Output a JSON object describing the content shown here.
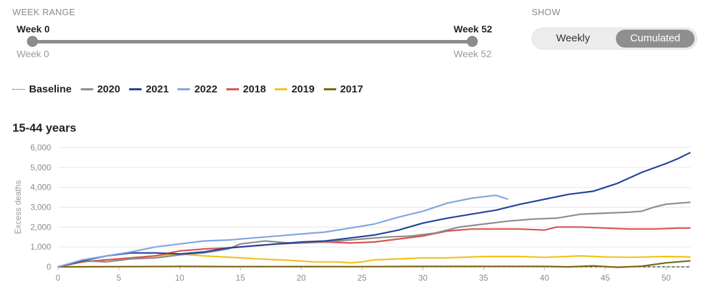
{
  "week_range": {
    "label": "WEEK RANGE",
    "start_top": "Week 0",
    "end_top": "Week 52",
    "start_bottom": "Week 0",
    "end_bottom": "Week 52"
  },
  "show": {
    "label": "SHOW",
    "options": [
      "Weekly",
      "Cumulated"
    ],
    "selected": "Cumulated"
  },
  "legend": [
    {
      "label": "Baseline",
      "color": "#333333",
      "style": "dotted"
    },
    {
      "label": "2020",
      "color": "#8c8c8c"
    },
    {
      "label": "2021",
      "color": "#1f449c"
    },
    {
      "label": "2022",
      "color": "#7fa7dc"
    },
    {
      "label": "2018",
      "color": "#d9534f"
    },
    {
      "label": "2019",
      "color": "#f2c21b"
    },
    {
      "label": "2017",
      "color": "#7a6510"
    }
  ],
  "chart_data": {
    "type": "line",
    "title": "15-44 years",
    "xlabel": "",
    "ylabel": "Excess deaths",
    "xlim": [
      0,
      52
    ],
    "ylim": [
      0,
      6000
    ],
    "x_ticks": [
      0,
      5,
      10,
      15,
      20,
      25,
      30,
      35,
      40,
      45,
      50
    ],
    "y_ticks": [
      0,
      1000,
      2000,
      3000,
      4000,
      5000,
      6000
    ],
    "y_tick_labels": [
      "0",
      "1,000",
      "2,000",
      "3,000",
      "4,000",
      "5,000",
      "6,000"
    ],
    "grid": "horizontal",
    "series": [
      {
        "name": "Baseline",
        "color": "#333333",
        "dashed": true,
        "x": [
          0,
          52
        ],
        "y": [
          0,
          0
        ]
      },
      {
        "name": "2017",
        "color": "#7a6510",
        "x": [
          0,
          5,
          10,
          15,
          20,
          25,
          30,
          35,
          40,
          42,
          44,
          46,
          48,
          50,
          52
        ],
        "y": [
          0,
          10,
          20,
          10,
          15,
          10,
          20,
          20,
          20,
          0,
          50,
          -20,
          30,
          200,
          300
        ]
      },
      {
        "name": "2019",
        "color": "#f2c21b",
        "x": [
          0,
          2,
          4,
          6,
          8,
          10,
          12,
          15,
          17,
          19,
          21,
          23,
          24,
          25,
          26,
          28,
          30,
          32,
          35,
          38,
          40,
          43,
          45,
          47,
          50,
          52
        ],
        "y": [
          0,
          250,
          350,
          450,
          550,
          650,
          550,
          450,
          380,
          330,
          250,
          250,
          200,
          250,
          350,
          400,
          450,
          450,
          520,
          520,
          480,
          550,
          500,
          480,
          520,
          500
        ]
      },
      {
        "name": "2018",
        "color": "#d9534f",
        "x": [
          0,
          2,
          4,
          6,
          8,
          10,
          12,
          14,
          16,
          18,
          20,
          22,
          24,
          26,
          28,
          30,
          32,
          34,
          36,
          38,
          40,
          41,
          43,
          45,
          47,
          49,
          51,
          52
        ],
        "y": [
          0,
          250,
          350,
          450,
          550,
          800,
          900,
          950,
          1050,
          1150,
          1200,
          1250,
          1200,
          1250,
          1400,
          1550,
          1800,
          1900,
          1900,
          1900,
          1850,
          2000,
          2000,
          1950,
          1900,
          1900,
          1950,
          1950
        ]
      },
      {
        "name": "2020",
        "color": "#8c8c8c",
        "x": [
          0,
          2,
          4,
          6,
          8,
          10,
          12,
          14,
          15,
          17,
          19,
          21,
          23,
          25,
          27,
          29,
          31,
          33,
          35,
          37,
          39,
          41,
          43,
          45,
          47,
          48,
          49,
          50,
          52
        ],
        "y": [
          0,
          300,
          250,
          400,
          450,
          600,
          700,
          900,
          1150,
          1300,
          1200,
          1250,
          1300,
          1400,
          1500,
          1550,
          1700,
          2000,
          2150,
          2300,
          2400,
          2450,
          2650,
          2700,
          2750,
          2800,
          3000,
          3150,
          3250
        ]
      },
      {
        "name": "2021",
        "color": "#1f449c",
        "x": [
          0,
          2,
          4,
          6,
          8,
          10,
          12,
          14,
          16,
          18,
          20,
          22,
          24,
          26,
          28,
          30,
          32,
          34,
          36,
          38,
          40,
          42,
          44,
          46,
          48,
          50,
          51,
          52
        ],
        "y": [
          0,
          300,
          550,
          700,
          700,
          650,
          750,
          950,
          1050,
          1150,
          1250,
          1300,
          1450,
          1600,
          1850,
          2200,
          2450,
          2650,
          2850,
          3150,
          3400,
          3650,
          3800,
          4200,
          4750,
          5200,
          5450,
          5750
        ]
      },
      {
        "name": "2022",
        "color": "#7fa7dc",
        "x": [
          0,
          2,
          4,
          6,
          8,
          10,
          12,
          14,
          16,
          18,
          20,
          22,
          24,
          26,
          28,
          30,
          32,
          34,
          36,
          37
        ],
        "y": [
          0,
          350,
          550,
          750,
          1000,
          1150,
          1300,
          1350,
          1450,
          1550,
          1650,
          1750,
          1950,
          2150,
          2500,
          2800,
          3200,
          3450,
          3600,
          3400
        ]
      }
    ]
  }
}
